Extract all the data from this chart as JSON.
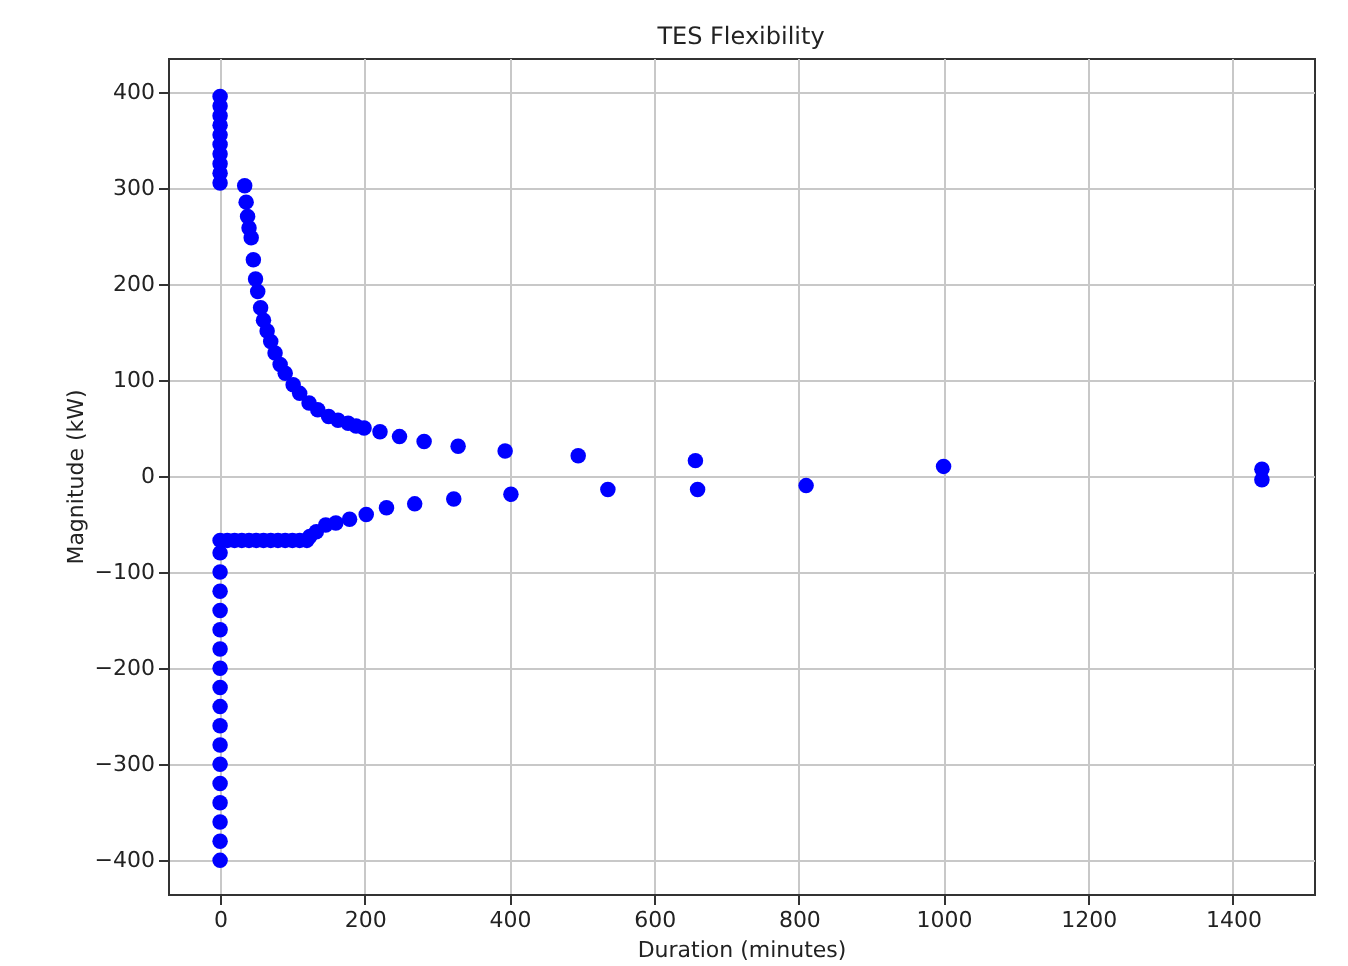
{
  "chart_data": {
    "type": "scatter",
    "title": "TES Flexibility",
    "xlabel": "Duration (minutes)",
    "ylabel": "Magnitude (kW)",
    "series": [
      {
        "color": "#0000ff",
        "x": [
          0,
          0,
          0,
          0,
          0,
          0,
          0,
          0,
          0,
          0,
          34,
          36,
          38,
          40,
          43,
          46,
          49,
          52,
          56,
          60,
          65,
          70,
          76,
          83,
          90,
          101,
          110,
          123,
          135,
          150,
          163,
          177,
          188,
          199,
          221,
          248,
          282,
          329,
          394,
          495,
          657,
          1000,
          1440,
          0,
          0,
          0,
          0,
          0,
          0,
          0,
          0,
          0,
          0,
          0,
          0,
          0,
          0,
          0,
          0,
          0,
          0,
          10,
          20,
          30,
          40,
          50,
          60,
          70,
          80,
          90,
          100,
          110,
          120,
          124,
          133,
          146,
          160,
          179,
          202,
          230,
          269,
          323,
          402,
          536,
          660,
          810,
          1440
        ],
        "values": [
          305,
          315,
          325,
          335,
          345,
          355,
          365,
          375,
          385,
          395,
          302,
          285,
          270,
          258,
          248,
          225,
          205,
          192,
          175,
          162,
          151,
          140,
          128,
          116,
          107,
          95,
          86,
          76,
          69,
          62,
          58,
          55,
          52,
          50,
          46,
          41,
          36,
          31,
          26,
          21,
          16,
          10,
          7,
          -400,
          -380,
          -360,
          -340,
          -320,
          -300,
          -280,
          -260,
          -240,
          -220,
          -200,
          -180,
          -160,
          -140,
          -120,
          -100,
          -80,
          -67,
          -67,
          -67,
          -67,
          -67,
          -67,
          -67,
          -67,
          -67,
          -67,
          -67,
          -67,
          -67,
          -63,
          -58,
          -51,
          -49,
          -45,
          -40,
          -33,
          -29,
          -24,
          -19,
          -14,
          -14,
          -10,
          -4
        ]
      }
    ],
    "xlim": [
      -72,
      1512
    ],
    "ylim": [
      -435,
      435
    ],
    "xticks": [
      0,
      200,
      400,
      600,
      800,
      1000,
      1200,
      1400
    ],
    "yticks": [
      -400,
      -300,
      -200,
      -100,
      0,
      100,
      200,
      300,
      400
    ],
    "grid": true,
    "marker": "circle"
  }
}
